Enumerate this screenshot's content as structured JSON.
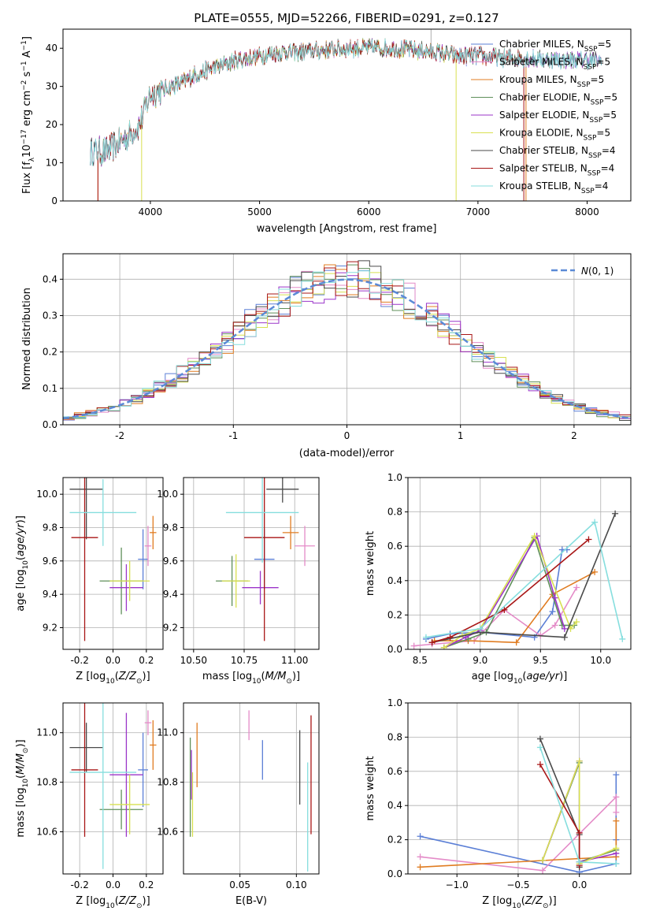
{
  "title": "PLATE=0555, MJD=52266, FIBERID=0291, z=0.127",
  "models": [
    {
      "name": "Chabrier MILES, N_SSP=5",
      "base": "Chabrier MILES, N",
      "sub": "SSP",
      "suffix": "=5",
      "color": "#5b7fd6"
    },
    {
      "name": "Salpeter MILES, N_SSP=5",
      "base": "Salpeter MILES, N",
      "sub": "SSP",
      "suffix": "=5",
      "color": "#e48bc8"
    },
    {
      "name": "Kroupa MILES, N_SSP=5",
      "base": "Kroupa MILES, N",
      "sub": "SSP",
      "suffix": "=5",
      "color": "#e07c21"
    },
    {
      "name": "Chabrier ELODIE, N_SSP=5",
      "base": "Chabrier ELODIE, N",
      "sub": "SSP",
      "suffix": "=5",
      "color": "#5f8f5a"
    },
    {
      "name": "Salpeter ELODIE, N_SSP=5",
      "base": "Salpeter ELODIE, N",
      "sub": "SSP",
      "suffix": "=5",
      "color": "#9b35c9"
    },
    {
      "name": "Kroupa ELODIE, N_SSP=5",
      "base": "Kroupa ELODIE, N",
      "sub": "SSP",
      "suffix": "=5",
      "color": "#d8e050"
    },
    {
      "name": "Chabrier STELIB, N_SSP=4",
      "base": "Chabrier STELIB, N",
      "sub": "SSP",
      "suffix": "=4",
      "color": "#4a4a4a"
    },
    {
      "name": "Salpeter STELIB, N_SSP=4",
      "base": "Salpeter STELIB, N",
      "sub": "SSP",
      "suffix": "=4",
      "color": "#a81616"
    },
    {
      "name": "Kroupa STELIB, N_SSP=4",
      "base": "Kroupa STELIB, N",
      "sub": "SSP",
      "suffix": "=4",
      "color": "#86dede"
    }
  ],
  "chart_data": [
    {
      "id": "spectrum",
      "type": "line",
      "title": "PLATE=0555, MJD=52266, FIBERID=0291, z=0.127",
      "xlabel": "wavelength [Angstrom, rest frame]",
      "ylabel": "Flux [f_λ10^-17 erg cm^-2 s^-1 A^-1]",
      "xlim": [
        3200,
        8400
      ],
      "ylim": [
        0,
        45
      ],
      "xticks": [
        4000,
        5000,
        6000,
        7000,
        8000
      ],
      "yticks": [
        0,
        10,
        20,
        30,
        40
      ],
      "grid": false,
      "legend": "top-right",
      "continuum": {
        "x": [
          3450,
          3600,
          3700,
          3800,
          3900,
          4000,
          4100,
          4200,
          4300,
          4400,
          4600,
          4800,
          5000,
          5200,
          5400,
          5600,
          5800,
          6000,
          6200,
          6400,
          6600,
          6800,
          7000,
          7200,
          7400,
          7600,
          7800,
          8000,
          8130
        ],
        "y": [
          13,
          13,
          15,
          17,
          20,
          28,
          29,
          30,
          31,
          33,
          35,
          37,
          38,
          39,
          39,
          39.5,
          40,
          40,
          40,
          39.5,
          39,
          38,
          38,
          37.5,
          37.5,
          37,
          37,
          37,
          36.5
        ]
      }
    },
    {
      "id": "residuals",
      "type": "step",
      "xlabel": "(data-model)/error",
      "ylabel": "Normed distribution",
      "xlim": [
        -2.5,
        2.5
      ],
      "ylim": [
        0,
        0.47
      ],
      "xticks": [
        -2,
        -1,
        0,
        1,
        2
      ],
      "yticks": [
        0.0,
        0.1,
        0.2,
        0.3,
        0.4
      ],
      "grid": true,
      "legend": "top-right",
      "legend_label": "N(0,1)",
      "gaussian": {
        "mu": 0,
        "sigma": 1
      }
    },
    {
      "id": "age-vs-Z",
      "type": "errorbar",
      "xlabel": "Z [log10(Z/Z_sun)]",
      "ylabel": "age [log10(age/yr)]",
      "xlim": [
        -0.3,
        0.3
      ],
      "ylim": [
        9.07,
        10.1
      ],
      "xticks": [
        -0.2,
        0.0,
        0.2
      ],
      "yticks": [
        9.2,
        9.4,
        9.6,
        9.8,
        10.0
      ],
      "grid": true,
      "points": [
        {
          "x": 0.18,
          "y": 9.61,
          "xerr": 0.03,
          "yerr": 0.18
        },
        {
          "x": 0.21,
          "y": 9.69,
          "xerr": 0.02,
          "yerr": 0.12
        },
        {
          "x": 0.24,
          "y": 9.77,
          "xerr": 0.02,
          "yerr": 0.1
        },
        {
          "x": 0.05,
          "y": 9.48,
          "xerr": 0.13,
          "yerr": 0.2
        },
        {
          "x": 0.08,
          "y": 9.44,
          "xerr": 0.1,
          "yerr": 0.14
        },
        {
          "x": 0.1,
          "y": 9.48,
          "xerr": 0.12,
          "yerr": 0.12
        },
        {
          "x": -0.16,
          "y": 10.03,
          "xerr": 0.1,
          "yerr": 0.3
        },
        {
          "x": -0.17,
          "y": 9.74,
          "xerr": 0.08,
          "yerr": 0.62
        },
        {
          "x": -0.06,
          "y": 9.89,
          "xerr": 0.2,
          "yerr": 0.2
        }
      ]
    },
    {
      "id": "age-vs-mass",
      "type": "errorbar",
      "xlabel": "mass [log10(M/M_sun)]",
      "ylabel": "",
      "xlim": [
        10.45,
        11.12
      ],
      "ylim": [
        9.07,
        10.1
      ],
      "xticks": [
        10.5,
        10.75,
        11.0
      ],
      "xticklabels": [
        "10.50",
        "10.75",
        "11.00"
      ],
      "yticks": [
        9.2,
        9.4,
        9.6,
        9.8,
        10.0
      ],
      "grid": true,
      "points": [
        {
          "x": 10.85,
          "y": 9.61,
          "xerr": 0.05,
          "yerr": 0.18
        },
        {
          "x": 11.05,
          "y": 9.69,
          "xerr": 0.05,
          "yerr": 0.12
        },
        {
          "x": 10.98,
          "y": 9.77,
          "xerr": 0.04,
          "yerr": 0.1
        },
        {
          "x": 10.69,
          "y": 9.48,
          "xerr": 0.08,
          "yerr": 0.15
        },
        {
          "x": 10.83,
          "y": 9.44,
          "xerr": 0.09,
          "yerr": 0.1
        },
        {
          "x": 10.71,
          "y": 9.48,
          "xerr": 0.07,
          "yerr": 0.16
        },
        {
          "x": 10.94,
          "y": 10.03,
          "xerr": 0.08,
          "yerr": 0.08
        },
        {
          "x": 10.85,
          "y": 9.74,
          "xerr": 0.1,
          "yerr": 0.62
        },
        {
          "x": 10.84,
          "y": 9.89,
          "xerr": 0.18,
          "yerr": 0.3
        }
      ]
    },
    {
      "id": "weight-vs-age",
      "type": "line",
      "xlabel": "age [log10(age/yr)]",
      "ylabel": "mass weight",
      "xlim": [
        8.4,
        10.25
      ],
      "ylim": [
        0,
        1.0
      ],
      "xticks": [
        8.5,
        9.0,
        9.5,
        10.0
      ],
      "yticks": [
        0.0,
        0.2,
        0.4,
        0.6,
        0.8,
        1.0
      ],
      "grid": true,
      "series": [
        {
          "x": [
            8.55,
            8.75,
            9.0,
            9.45,
            9.6,
            9.68,
            9.72
          ],
          "y": [
            0.06,
            0.09,
            0.1,
            0.07,
            0.22,
            0.58,
            0.58
          ]
        },
        {
          "x": [
            8.45,
            8.6,
            8.95,
            9.2,
            9.5,
            9.62,
            9.8
          ],
          "y": [
            0.02,
            0.03,
            0.05,
            0.23,
            0.08,
            0.14,
            0.36
          ]
        },
        {
          "x": [
            8.62,
            8.9,
            9.3,
            9.6,
            9.95
          ],
          "y": [
            0.05,
            0.05,
            0.04,
            0.32,
            0.45
          ]
        },
        {
          "x": [
            8.7,
            8.9,
            9.05,
            9.45,
            9.68,
            9.78
          ],
          "y": [
            0.01,
            0.06,
            0.1,
            0.65,
            0.14,
            0.14
          ]
        },
        {
          "x": [
            8.7,
            8.88,
            9.0,
            9.47,
            9.62,
            9.7
          ],
          "y": [
            0.01,
            0.07,
            0.11,
            0.66,
            0.3,
            0.12
          ]
        },
        {
          "x": [
            8.7,
            8.85,
            9.0,
            9.45,
            9.75,
            9.8
          ],
          "y": [
            0.01,
            0.08,
            0.12,
            0.66,
            0.12,
            0.16
          ]
        },
        {
          "x": [
            8.6,
            9.0,
            9.7,
            10.12
          ],
          "y": [
            0.04,
            0.1,
            0.07,
            0.79
          ]
        },
        {
          "x": [
            8.6,
            8.75,
            9.2,
            9.9
          ],
          "y": [
            0.04,
            0.07,
            0.23,
            0.64
          ]
        },
        {
          "x": [
            8.55,
            9.0,
            9.95,
            10.18
          ],
          "y": [
            0.07,
            0.12,
            0.74,
            0.06
          ]
        }
      ]
    },
    {
      "id": "mass-vs-Z",
      "type": "errorbar",
      "xlabel": "Z [log10(Z/Z_sun)]",
      "ylabel": "mass [log10(M/M_sun)]",
      "xlim": [
        -0.3,
        0.3
      ],
      "ylim": [
        10.43,
        11.12
      ],
      "xticks": [
        -0.2,
        0.0,
        0.2
      ],
      "yticks": [
        10.6,
        10.8,
        11.0
      ],
      "grid": true,
      "points": [
        {
          "x": 0.18,
          "y": 10.85,
          "xerr": 0.03,
          "yerr": 0.15
        },
        {
          "x": 0.21,
          "y": 11.04,
          "xerr": 0.02,
          "yerr": 0.05
        },
        {
          "x": 0.24,
          "y": 10.95,
          "xerr": 0.02,
          "yerr": 0.1
        },
        {
          "x": 0.05,
          "y": 10.69,
          "xerr": 0.13,
          "yerr": 0.08
        },
        {
          "x": 0.08,
          "y": 10.83,
          "xerr": 0.1,
          "yerr": 0.25
        },
        {
          "x": 0.1,
          "y": 10.71,
          "xerr": 0.12,
          "yerr": 0.12
        },
        {
          "x": -0.16,
          "y": 10.94,
          "xerr": 0.1,
          "yerr": 0.1
        },
        {
          "x": -0.17,
          "y": 10.85,
          "xerr": 0.08,
          "yerr": 0.27
        },
        {
          "x": -0.06,
          "y": 10.84,
          "xerr": 0.2,
          "yerr": 0.39
        }
      ]
    },
    {
      "id": "mass-vs-ebv",
      "type": "errorbar",
      "xlabel": "E(B-V)",
      "ylabel": "",
      "xlim": [
        0.0,
        0.12
      ],
      "ylim": [
        10.43,
        11.12
      ],
      "xticks": [
        0.05,
        0.1
      ],
      "yticks": [
        10.6,
        10.8,
        11.0
      ],
      "grid": true,
      "points": [
        {
          "x": 0.07,
          "y": 10.89,
          "xerr": 0.0,
          "yerr": 0.08
        },
        {
          "x": 0.058,
          "y": 11.03,
          "xerr": 0.0,
          "yerr": 0.06
        },
        {
          "x": 0.012,
          "y": 10.91,
          "xerr": 0.0,
          "yerr": 0.13
        },
        {
          "x": 0.006,
          "y": 10.78,
          "xerr": 0.0,
          "yerr": 0.2
        },
        {
          "x": 0.007,
          "y": 10.83,
          "xerr": 0.0,
          "yerr": 0.1
        },
        {
          "x": 0.008,
          "y": 10.71,
          "xerr": 0.0,
          "yerr": 0.13
        },
        {
          "x": 0.103,
          "y": 10.86,
          "xerr": 0.0,
          "yerr": 0.15
        },
        {
          "x": 0.113,
          "y": 10.83,
          "xerr": 0.0,
          "yerr": 0.24
        },
        {
          "x": 0.11,
          "y": 10.66,
          "xerr": 0.0,
          "yerr": 0.22
        }
      ]
    },
    {
      "id": "weight-vs-Z",
      "type": "line",
      "xlabel": "Z [log10(Z/Z_sun)]",
      "ylabel": "mass weight",
      "xlim": [
        -1.4,
        0.42
      ],
      "ylim": [
        0,
        1.0
      ],
      "xticks": [
        -1.0,
        -0.5,
        0.0
      ],
      "yticks": [
        0.0,
        0.2,
        0.4,
        0.6,
        0.8,
        1.0
      ],
      "grid": true,
      "series": [
        {
          "x": [
            -1.3,
            0.0,
            0.3,
            0.3,
            0.3
          ],
          "y": [
            0.22,
            0.01,
            0.06,
            0.2,
            0.58
          ]
        },
        {
          "x": [
            -1.3,
            -0.3,
            0.3,
            0.3
          ],
          "y": [
            0.1,
            0.02,
            0.45,
            0.36
          ]
        },
        {
          "x": [
            -1.3,
            0.0,
            0.3,
            0.3
          ],
          "y": [
            0.04,
            0.09,
            0.1,
            0.31
          ]
        },
        {
          "x": [
            -0.3,
            0.0,
            0.0,
            0.3
          ],
          "y": [
            0.08,
            0.65,
            0.07,
            0.14
          ]
        },
        {
          "x": [
            -0.3,
            0.0,
            0.0,
            0.3
          ],
          "y": [
            0.08,
            0.66,
            0.07,
            0.12
          ]
        },
        {
          "x": [
            -0.3,
            0.0,
            0.0,
            0.3
          ],
          "y": [
            0.08,
            0.66,
            0.06,
            0.15
          ]
        },
        {
          "x": [
            -0.32,
            0.0,
            0.0
          ],
          "y": [
            0.79,
            0.23,
            0.04
          ]
        },
        {
          "x": [
            -0.32,
            0.0,
            0.0
          ],
          "y": [
            0.64,
            0.24,
            0.05
          ]
        },
        {
          "x": [
            -0.32,
            0.0,
            0.3
          ],
          "y": [
            0.74,
            0.07,
            0.06
          ]
        }
      ]
    }
  ]
}
